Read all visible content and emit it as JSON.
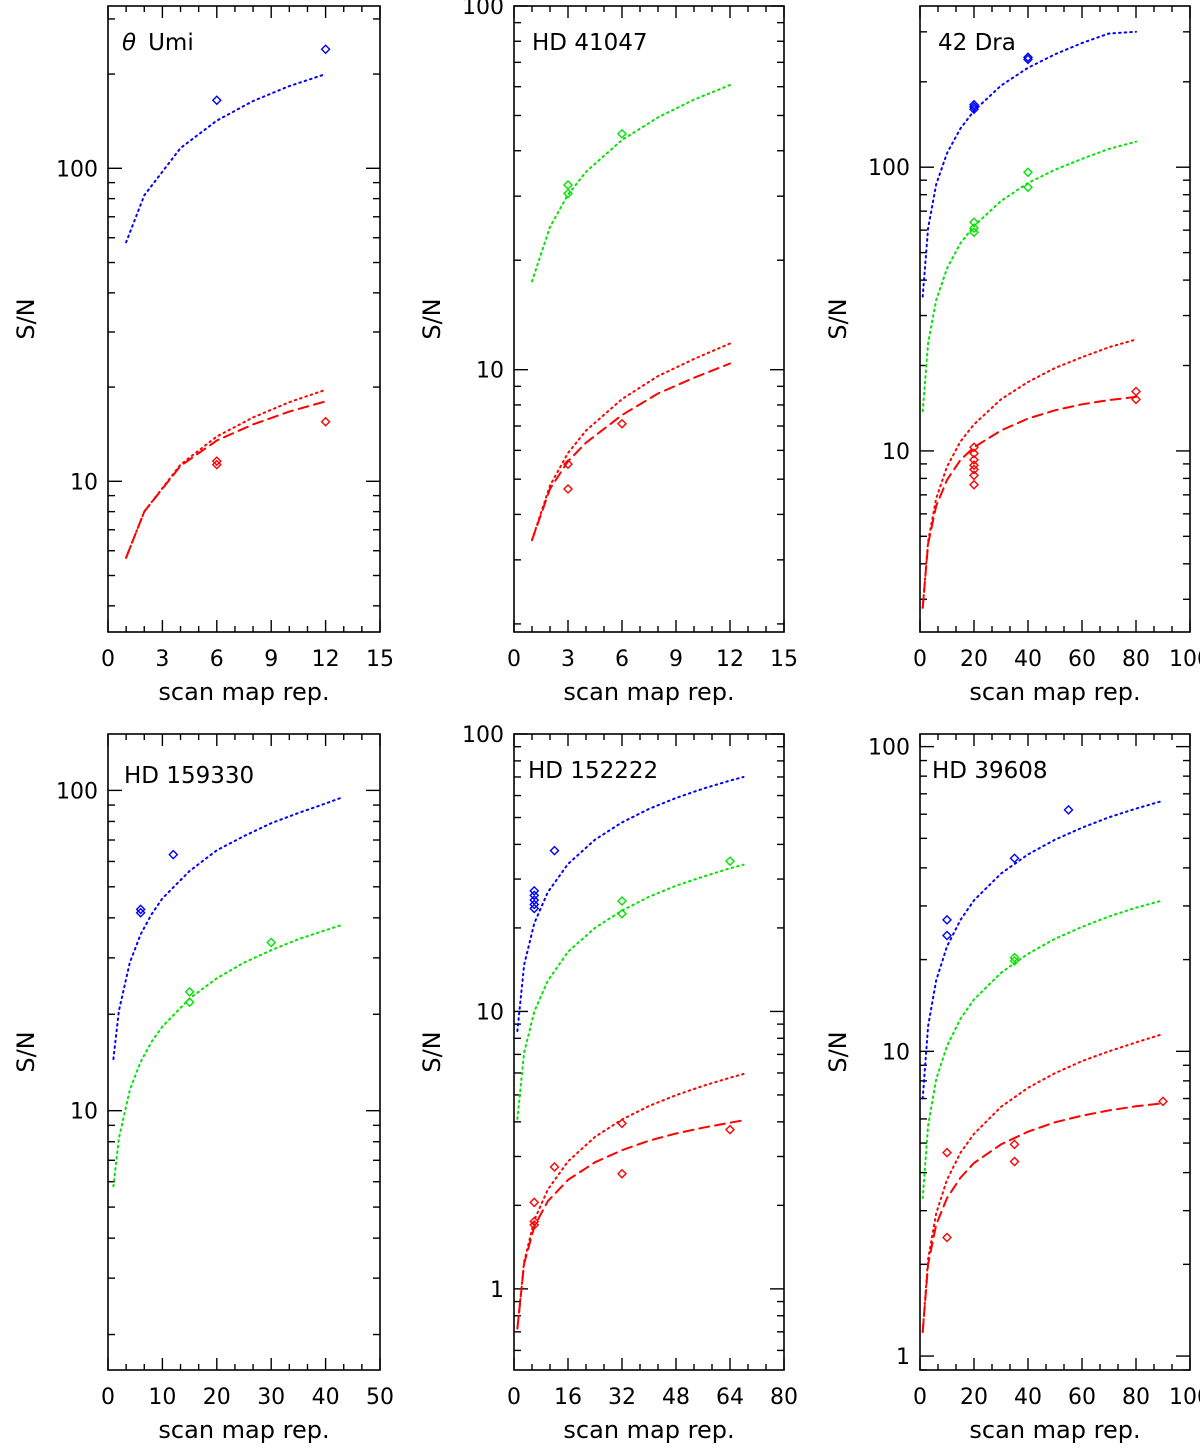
{
  "figure": {
    "description_free": true
  },
  "colors": {
    "blue": "#0000ff",
    "green": "#00e400",
    "red": "#ff0000",
    "axes": "#000000"
  },
  "chart_data": [
    {
      "type": "scatter",
      "title": "θ Umi",
      "title_prefix": "θ",
      "title_name": "Umi",
      "xlabel": "scan map rep.",
      "ylabel": "S/N",
      "xlim": [
        0,
        15
      ],
      "ylim": [
        3.3,
        330
      ],
      "yscale": "log",
      "xticks": [
        0,
        3,
        6,
        9,
        12,
        15
      ],
      "yticks": [
        10,
        100
      ],
      "series": [
        {
          "name": "blue fit",
          "color": "blue",
          "style": "dotted",
          "x": [
            1,
            2,
            4,
            6,
            8,
            10,
            12
          ],
          "y": [
            58,
            82,
            116,
            142,
            164,
            183,
            200
          ]
        },
        {
          "name": "blue data",
          "color": "blue",
          "style": "markers",
          "x": [
            6,
            12
          ],
          "y": [
            165,
            240
          ]
        },
        {
          "name": "red fit (dotted)",
          "color": "red",
          "style": "dotted",
          "x": [
            1,
            2,
            4,
            6,
            8,
            10,
            12
          ],
          "y": [
            5.7,
            8.0,
            11.3,
            13.9,
            16.0,
            17.9,
            19.6
          ]
        },
        {
          "name": "red fit (dashed)",
          "color": "red",
          "style": "dashed",
          "x": [
            1,
            2,
            4,
            6,
            8,
            10,
            12
          ],
          "y": [
            5.7,
            8.0,
            11.2,
            13.5,
            15.2,
            16.7,
            18.0
          ]
        },
        {
          "name": "red data",
          "color": "red",
          "style": "markers",
          "x": [
            6,
            6,
            12
          ],
          "y": [
            11.3,
            11.6,
            15.5
          ]
        }
      ]
    },
    {
      "type": "scatter",
      "title": "HD 41047",
      "xlabel": "scan map rep.",
      "ylabel": "S/N",
      "xlim": [
        0,
        15
      ],
      "ylim": [
        1.9,
        100
      ],
      "yscale": "log",
      "xticks": [
        0,
        3,
        6,
        9,
        12,
        15
      ],
      "yticks": [
        10,
        100
      ],
      "series": [
        {
          "name": "green fit",
          "color": "green",
          "style": "dotted",
          "x": [
            1,
            2,
            3,
            4,
            6,
            8,
            10,
            12
          ],
          "y": [
            17.5,
            24.7,
            30.3,
            35,
            42.8,
            49.4,
            55.3,
            60.6
          ]
        },
        {
          "name": "green data",
          "color": "green",
          "style": "markers",
          "x": [
            3,
            3,
            6
          ],
          "y": [
            30.5,
            32.2,
            44.5
          ]
        },
        {
          "name": "red fit (dotted)",
          "color": "red",
          "style": "dotted",
          "x": [
            1,
            2,
            3,
            4,
            6,
            8,
            10,
            12
          ],
          "y": [
            3.4,
            4.8,
            5.9,
            6.8,
            8.3,
            9.6,
            10.7,
            11.8
          ]
        },
        {
          "name": "red fit (dashed)",
          "color": "red",
          "style": "dashed",
          "x": [
            1,
            2,
            3,
            4,
            6,
            8,
            10,
            12
          ],
          "y": [
            3.4,
            4.7,
            5.6,
            6.3,
            7.5,
            8.6,
            9.5,
            10.4
          ]
        },
        {
          "name": "red data",
          "color": "red",
          "style": "markers",
          "x": [
            3,
            3,
            6
          ],
          "y": [
            4.7,
            5.5,
            7.1
          ]
        }
      ]
    },
    {
      "type": "scatter",
      "title": "42 Dra",
      "xlabel": "scan map rep.",
      "ylabel": "S/N",
      "xlim": [
        0,
        100
      ],
      "ylim": [
        2.3,
        370
      ],
      "yscale": "log",
      "xticks": [
        0,
        20,
        40,
        60,
        80,
        100
      ],
      "yticks": [
        10,
        100
      ],
      "series": [
        {
          "name": "blue fit",
          "color": "blue",
          "style": "dotted",
          "x": [
            1,
            3,
            6,
            10,
            15,
            20,
            30,
            40,
            50,
            60,
            70,
            80
          ],
          "y": [
            35,
            61,
            87,
            112,
            137,
            158,
            194,
            224,
            250,
            274,
            296,
            300
          ]
        },
        {
          "name": "blue data",
          "color": "blue",
          "style": "markers",
          "x": [
            20,
            20,
            20,
            40,
            40
          ],
          "y": [
            160,
            163,
            166,
            240,
            244
          ]
        },
        {
          "name": "green fit",
          "color": "green",
          "style": "dotted",
          "x": [
            1,
            3,
            6,
            10,
            15,
            20,
            30,
            40,
            50,
            60,
            70,
            80
          ],
          "y": [
            13.8,
            24,
            34,
            44,
            54,
            62,
            76,
            88,
            98,
            107,
            116,
            123
          ]
        },
        {
          "name": "green data",
          "color": "green",
          "style": "markers",
          "x": [
            20,
            20,
            20,
            40,
            40
          ],
          "y": [
            59,
            61,
            64,
            85,
            96
          ]
        },
        {
          "name": "red fit (dotted)",
          "color": "red",
          "style": "dotted",
          "x": [
            1,
            3,
            6,
            10,
            15,
            20,
            30,
            40,
            50,
            60,
            70,
            80
          ],
          "y": [
            2.8,
            4.8,
            6.8,
            8.8,
            10.8,
            12.4,
            15.2,
            17.5,
            19.6,
            21.4,
            23.2,
            24.7
          ]
        },
        {
          "name": "red fit (dashed)",
          "color": "red",
          "style": "dashed",
          "x": [
            1,
            3,
            6,
            10,
            15,
            20,
            30,
            40,
            50,
            60,
            70,
            80
          ],
          "y": [
            2.8,
            4.7,
            6.4,
            7.9,
            9.3,
            10.3,
            11.8,
            13.0,
            13.9,
            14.6,
            15.1,
            15.5
          ]
        },
        {
          "name": "red data",
          "color": "red",
          "style": "markers",
          "x": [
            20,
            20,
            20,
            20,
            20,
            20,
            20,
            80,
            80
          ],
          "y": [
            7.6,
            8.2,
            8.6,
            8.9,
            9.3,
            9.8,
            10.3,
            15.2,
            16.2
          ]
        }
      ]
    },
    {
      "type": "scatter",
      "title": "HD 159330",
      "xlabel": "scan map rep.",
      "ylabel": "S/N",
      "xlim": [
        0,
        50
      ],
      "ylim": [
        1.55,
        150
      ],
      "yscale": "log",
      "xticks": [
        0,
        10,
        20,
        30,
        40,
        50
      ],
      "yticks": [
        10,
        100
      ],
      "series": [
        {
          "name": "blue fit",
          "color": "blue",
          "style": "dotted",
          "x": [
            1,
            2,
            4,
            6,
            8,
            10,
            15,
            20,
            25,
            30,
            35,
            40,
            43
          ],
          "y": [
            14.5,
            20.5,
            29,
            35.5,
            41,
            46,
            56,
            65,
            72,
            79,
            85,
            91,
            95
          ]
        },
        {
          "name": "blue data",
          "color": "blue",
          "style": "markers",
          "x": [
            6,
            6,
            12
          ],
          "y": [
            41.5,
            42.5,
            63
          ]
        },
        {
          "name": "green fit",
          "color": "green",
          "style": "dotted",
          "x": [
            1,
            2,
            4,
            6,
            8,
            10,
            15,
            20,
            25,
            30,
            35,
            40,
            43
          ],
          "y": [
            5.8,
            8.2,
            11.6,
            14.2,
            16.4,
            18.3,
            22.4,
            25.9,
            29,
            31.7,
            34.3,
            36.6,
            38
          ]
        },
        {
          "name": "green data",
          "color": "green",
          "style": "markers",
          "x": [
            15,
            15,
            30
          ],
          "y": [
            21.8,
            23.5,
            33.5
          ]
        }
      ]
    },
    {
      "type": "scatter",
      "title": "HD 152222",
      "xlabel": "scan map rep.",
      "ylabel": "S/N",
      "xlim": [
        0,
        80
      ],
      "ylim": [
        0.51,
        100
      ],
      "yscale": "log",
      "xticks": [
        0,
        16,
        32,
        48,
        64,
        80
      ],
      "xtick_labels": [
        "0",
        "16",
        "32",
        "48",
        "64",
        "80"
      ],
      "yticks": [
        1,
        10,
        100
      ],
      "series": [
        {
          "name": "blue fit",
          "color": "blue",
          "style": "dotted",
          "x": [
            1,
            3,
            6,
            10,
            16,
            24,
            32,
            40,
            48,
            56,
            64,
            68
          ],
          "y": [
            8.5,
            14.7,
            20.8,
            26.9,
            34,
            41.6,
            48,
            53.7,
            58.8,
            63.5,
            67.9,
            70
          ]
        },
        {
          "name": "blue data",
          "color": "blue",
          "style": "markers",
          "x": [
            6,
            6,
            6,
            6,
            6,
            12
          ],
          "y": [
            23.5,
            24.3,
            25.2,
            26.2,
            27.2,
            38
          ]
        },
        {
          "name": "green fit",
          "color": "green",
          "style": "dotted",
          "x": [
            1,
            3,
            6,
            10,
            16,
            24,
            32,
            40,
            48,
            56,
            64,
            68
          ],
          "y": [
            4.1,
            7.1,
            10,
            12.9,
            16.4,
            20,
            23.1,
            25.9,
            28.4,
            30.6,
            32.8,
            33.8
          ]
        },
        {
          "name": "green data",
          "color": "green",
          "style": "markers",
          "x": [
            32,
            32,
            64
          ],
          "y": [
            22.5,
            25,
            34.8
          ]
        },
        {
          "name": "red fit (dotted)",
          "color": "red",
          "style": "dotted",
          "x": [
            1,
            3,
            6,
            10,
            16,
            24,
            32,
            40,
            48,
            56,
            64,
            68
          ],
          "y": [
            0.72,
            1.25,
            1.77,
            2.28,
            2.88,
            3.53,
            4.08,
            4.56,
            4.99,
            5.39,
            5.77,
            5.95
          ]
        },
        {
          "name": "red fit (dashed)",
          "color": "red",
          "style": "dashed",
          "x": [
            1,
            3,
            6,
            10,
            16,
            24,
            32,
            40,
            48,
            56,
            64,
            68
          ],
          "y": [
            0.72,
            1.23,
            1.68,
            2.07,
            2.47,
            2.86,
            3.16,
            3.42,
            3.63,
            3.81,
            3.97,
            4.05
          ]
        },
        {
          "name": "red data",
          "color": "red",
          "style": "markers",
          "x": [
            6,
            6,
            6,
            12,
            32,
            32,
            64
          ],
          "y": [
            1.7,
            1.75,
            2.05,
            2.75,
            2.6,
            3.95,
            3.75
          ]
        }
      ]
    },
    {
      "type": "scatter",
      "title": "HD 39608",
      "xlabel": "scan map rep.",
      "ylabel": "S/N",
      "xlim": [
        0,
        100
      ],
      "ylim": [
        0.9,
        110
      ],
      "yscale": "log",
      "xticks": [
        0,
        20,
        40,
        60,
        80,
        100
      ],
      "yticks": [
        1,
        10,
        100
      ],
      "series": [
        {
          "name": "blue fit",
          "color": "blue",
          "style": "dotted",
          "x": [
            1,
            3,
            6,
            10,
            15,
            20,
            30,
            40,
            50,
            60,
            70,
            80,
            90
          ],
          "y": [
            7,
            12.1,
            17.1,
            22.1,
            27,
            31.3,
            38.3,
            44.3,
            49.5,
            54.2,
            58.6,
            62.6,
            66.4
          ]
        },
        {
          "name": "blue data",
          "color": "blue",
          "style": "markers",
          "x": [
            10,
            10,
            35,
            55
          ],
          "y": [
            24,
            27,
            43,
            62
          ]
        },
        {
          "name": "green fit",
          "color": "green",
          "style": "dotted",
          "x": [
            1,
            3,
            6,
            10,
            15,
            20,
            30,
            40,
            50,
            60,
            70,
            80,
            90
          ],
          "y": [
            3.3,
            5.7,
            8.1,
            10.4,
            12.8,
            14.8,
            18.1,
            20.9,
            23.4,
            25.6,
            27.7,
            29.6,
            31.3
          ]
        },
        {
          "name": "green data",
          "color": "green",
          "style": "markers",
          "x": [
            35,
            35
          ],
          "y": [
            19.8,
            20.3
          ]
        },
        {
          "name": "red fit (dotted)",
          "color": "red",
          "style": "dotted",
          "x": [
            1,
            3,
            6,
            10,
            15,
            20,
            30,
            40,
            50,
            60,
            70,
            80,
            90
          ],
          "y": [
            1.2,
            2.08,
            2.94,
            3.79,
            4.65,
            5.36,
            6.57,
            7.59,
            8.48,
            9.29,
            10.0,
            10.7,
            11.4
          ]
        },
        {
          "name": "red fit (dashed)",
          "color": "red",
          "style": "dashed",
          "x": [
            1,
            3,
            6,
            10,
            15,
            20,
            30,
            40,
            50,
            60,
            70,
            80,
            90
          ],
          "y": [
            1.2,
            2.0,
            2.7,
            3.3,
            3.85,
            4.3,
            4.95,
            5.45,
            5.85,
            6.15,
            6.4,
            6.6,
            6.75
          ]
        },
        {
          "name": "red data",
          "color": "red",
          "style": "markers",
          "x": [
            10,
            10,
            35,
            35,
            90
          ],
          "y": [
            2.45,
            4.65,
            4.35,
            4.95,
            6.85
          ]
        }
      ]
    }
  ]
}
